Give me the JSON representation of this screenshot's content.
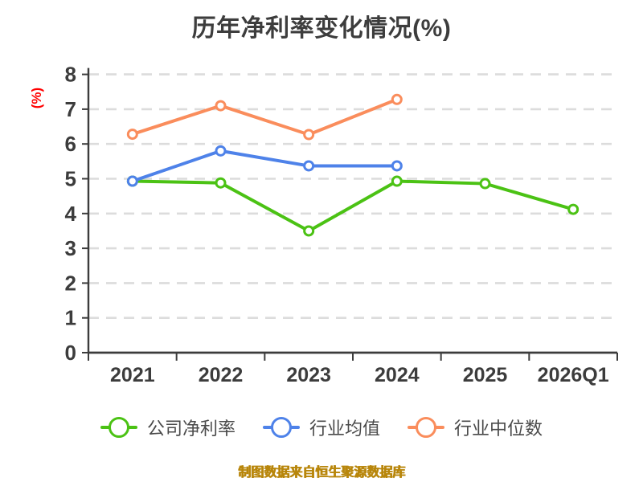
{
  "title": "历年净利率变化情况(%)",
  "caption": "制图数据来自恒生聚源数据库",
  "axis": {
    "y_label": "(%)",
    "y_ticks": [
      "0",
      "1",
      "2",
      "3",
      "4",
      "5",
      "6",
      "7",
      "8"
    ],
    "x_ticks": [
      "2021",
      "2022",
      "2023",
      "2024",
      "2025",
      "2026Q1"
    ]
  },
  "colors": {
    "title_text": "#3d3d3d",
    "axis_text": "#3c3c3c",
    "spine": "#3c3c3c",
    "gridline": "#dcdcdc",
    "y_label_red": "#ff0000",
    "caption_gold": "#b8860b",
    "series_green": "#4bc214",
    "series_blue": "#4e82e9",
    "series_orange": "#fa8d5c"
  },
  "chart_data": {
    "type": "line",
    "title": "历年净利率变化情况(%)",
    "categories": [
      "2021",
      "2022",
      "2023",
      "2024",
      "2025",
      "2026Q1"
    ],
    "series": [
      {
        "name": "公司净利率",
        "color": "#4bc214",
        "values": [
          4.93,
          4.88,
          3.5,
          4.93,
          4.86,
          4.12
        ]
      },
      {
        "name": "行业均值",
        "color": "#4e82e9",
        "values": [
          4.93,
          5.8,
          5.37,
          5.37,
          null,
          null
        ]
      },
      {
        "name": "行业中位数",
        "color": "#fa8d5c",
        "values": [
          6.28,
          7.1,
          6.27,
          7.28,
          null,
          null
        ]
      }
    ],
    "xlabel": "",
    "ylabel": "(%)",
    "ylim": [
      0,
      8
    ],
    "ytick_step": 1,
    "grid": "horizontal-dashed",
    "legend_position": "bottom",
    "marker": "hollow-circle"
  }
}
